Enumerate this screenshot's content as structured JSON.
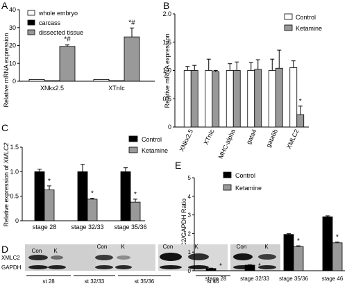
{
  "panels": [
    "A",
    "B",
    "C",
    "D",
    "E"
  ],
  "chart_data": [
    {
      "panel": "A",
      "type": "bar",
      "ylabel": "Relative mRNA expression",
      "ylim": [
        0,
        40
      ],
      "yticks": [
        0,
        10,
        20,
        30,
        40
      ],
      "categories": [
        "XNkx2.5",
        "XTnIc"
      ],
      "series": [
        {
          "name": "whole embryo",
          "color": "#ffffff",
          "values": [
            1,
            1
          ],
          "err": [
            0,
            0
          ]
        },
        {
          "name": "carcass",
          "color": "#000000",
          "values": [
            0.3,
            0.3
          ],
          "err": [
            0,
            0
          ]
        },
        {
          "name": "dissected tissue",
          "color": "#999999",
          "values": [
            19.5,
            24.8
          ],
          "err": [
            0.8,
            5
          ]
        }
      ],
      "annotations": [
        "*#",
        "*#"
      ],
      "legend": "top-left"
    },
    {
      "panel": "B",
      "type": "bar",
      "ylabel": "Relative mRNA expression",
      "ylim": [
        0,
        2
      ],
      "yticks": [
        "0",
        "0.5",
        "1.0",
        "1.5",
        "2.0"
      ],
      "categories": [
        "XNkx2.5",
        "XTnIc",
        "MHC-alpha",
        "gata4",
        "gata6b",
        "XMLC2"
      ],
      "series": [
        {
          "name": "Control",
          "color": "#ffffff",
          "values": [
            1.0,
            1.0,
            1.0,
            1.0,
            1.0,
            1.05
          ],
          "err": [
            0.07,
            0.2,
            0.12,
            0.14,
            0.2,
            0.12
          ]
        },
        {
          "name": "Ketamine",
          "color": "#999999",
          "values": [
            1.0,
            0.98,
            1.0,
            1.02,
            1.04,
            0.22
          ],
          "err": [
            0.09,
            0.02,
            0.15,
            0.17,
            0.32,
            0.15
          ]
        }
      ],
      "annotations": [
        "",
        "",
        "",
        "",
        "",
        "*"
      ],
      "legend": "top-right"
    },
    {
      "panel": "C",
      "type": "bar",
      "ylabel_prefix": "Relative expression of ",
      "ylabel_gene": "XMLC2",
      "ylim": [
        0,
        1.5
      ],
      "yticks": [
        "0",
        "0.5",
        "1.0",
        "1.5"
      ],
      "categories": [
        "stage 28",
        "stage 32/33",
        "stage 35/36"
      ],
      "series": [
        {
          "name": "Control",
          "color": "#000000",
          "values": [
            1.0,
            1.0,
            1.0
          ],
          "err": [
            0.05,
            0.15,
            0.08
          ]
        },
        {
          "name": "Ketamine",
          "color": "#999999",
          "values": [
            0.63,
            0.44,
            0.38
          ],
          "err": [
            0.08,
            0.02,
            0.06
          ]
        }
      ],
      "annotations": [
        "*",
        "*",
        "*"
      ],
      "legend": "top-right"
    },
    {
      "panel": "E",
      "type": "bar",
      "ylabel": "XMLC2/GAPDH Ratio",
      "ylim": [
        0,
        5
      ],
      "yticks": [
        "0",
        "1",
        "2",
        "3",
        "4",
        "5"
      ],
      "categories": [
        "stage 28",
        "stage 32/33",
        "stage 35/36",
        "stage 46"
      ],
      "series": [
        {
          "name": "Control",
          "color": "#000000",
          "values": [
            0.12,
            0.3,
            1.95,
            2.9
          ],
          "err": [
            0.02,
            0.02,
            0.04,
            0.05
          ]
        },
        {
          "name": "Ketamine",
          "color": "#999999",
          "values": [
            0.0,
            0.0,
            1.3,
            1.5
          ],
          "err": [
            0,
            0,
            0.04,
            0.04
          ]
        }
      ],
      "annotations": [
        "*",
        "*",
        "*",
        "*"
      ],
      "legend": "top-left"
    }
  ],
  "blot": {
    "lane_labels": [
      "Con",
      "K",
      "Con",
      "K",
      "Con",
      "K",
      "Con",
      "K"
    ],
    "row_labels": [
      "XMLC2",
      "GAPDH"
    ],
    "stage_labels": [
      "st 28",
      "st 32/33",
      "st 35/36",
      "st 46"
    ]
  }
}
